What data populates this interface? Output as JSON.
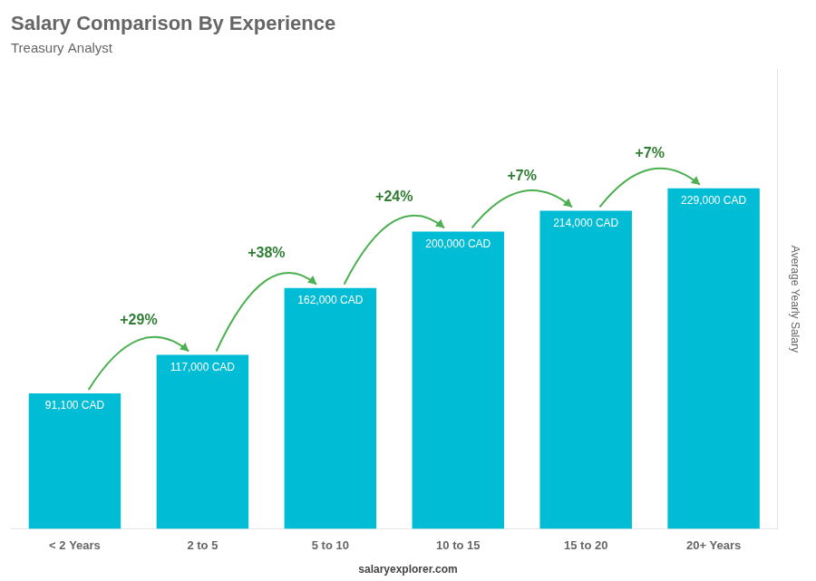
{
  "chart_data": {
    "type": "bar",
    "title": "Salary Comparison By Experience",
    "subtitle": "Treasury Analyst",
    "ylabel": "Average Yearly Salary",
    "source": "salaryexplorer.com",
    "categories": [
      "< 2 Years",
      "2 to 5",
      "5 to 10",
      "10 to 15",
      "15 to 20",
      "20+ Years"
    ],
    "values": [
      91100,
      117000,
      162000,
      200000,
      214000,
      229000
    ],
    "value_labels": [
      "91,100 CAD",
      "117,000 CAD",
      "162,000 CAD",
      "200,000 CAD",
      "214,000 CAD",
      "229,000 CAD"
    ],
    "data_labels": true,
    "annotations": [
      "+29%",
      "+38%",
      "+24%",
      "+7%",
      "+7%"
    ],
    "color": "#00bcd4",
    "ylim": [
      0,
      309150
    ],
    "grid": false,
    "tick_labels": "x"
  }
}
